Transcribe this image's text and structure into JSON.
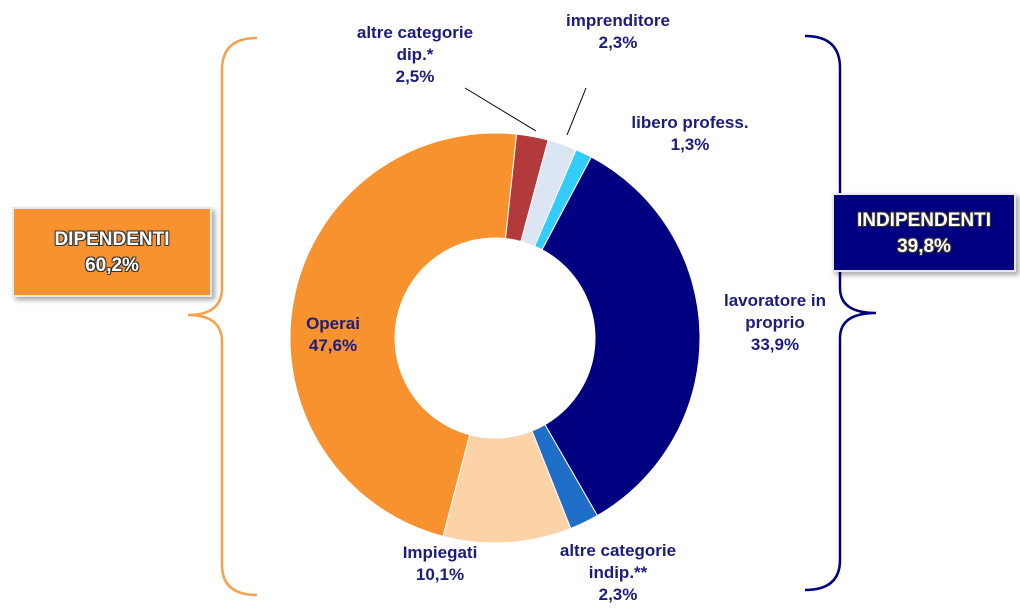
{
  "chart_data": {
    "type": "donut",
    "categories": [
      "lavoratore in proprio",
      "altre categorie indip.**",
      "Impiegati",
      "Operai",
      "altre categorie dip.*",
      "imprenditore",
      "libero profess."
    ],
    "values": [
      33.9,
      2.3,
      10.1,
      47.6,
      2.5,
      2.3,
      1.3
    ],
    "value_labels": [
      "33,9%",
      "2,3%",
      "10,1%",
      "47,6%",
      "2,5%",
      "2,3%",
      "1,3%"
    ],
    "colors": [
      "#000080",
      "#1f6fc8",
      "#fcd3a6",
      "#f7922f",
      "#b23a3a",
      "#dce6f2",
      "#33ccff"
    ],
    "groups": [
      {
        "label": "DIPENDENTI",
        "value": 60.2,
        "value_label": "60,2%",
        "color": "#f7922f"
      },
      {
        "label": "INDIPENDENTI",
        "value": 39.8,
        "value_label": "39,8%",
        "color": "#000080"
      }
    ]
  }
}
